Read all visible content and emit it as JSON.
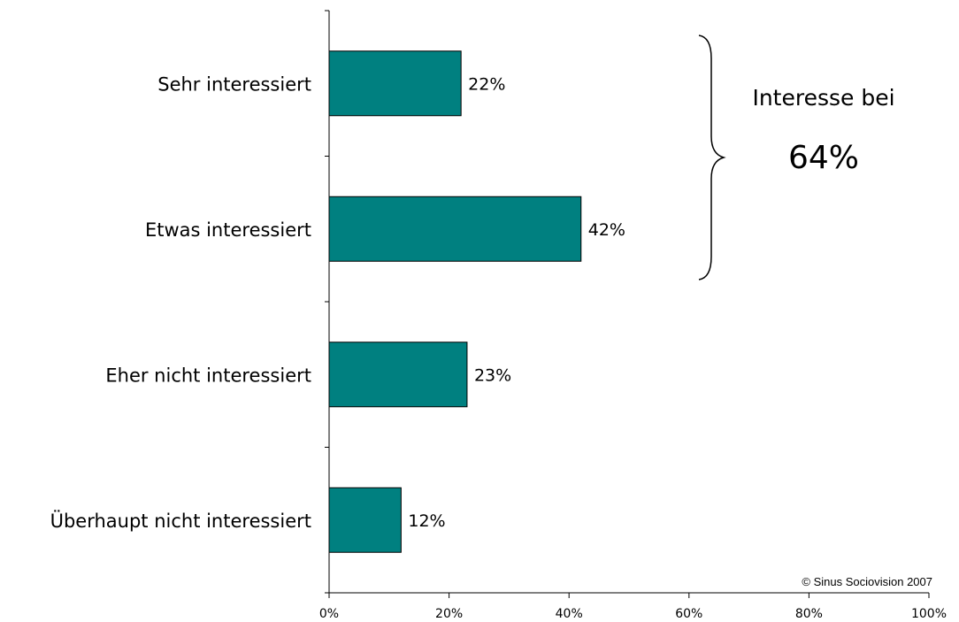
{
  "chart_data": {
    "type": "bar",
    "orientation": "horizontal",
    "categories": [
      "Sehr interessiert",
      "Etwas interessiert",
      "Eher nicht interessiert",
      "Überhaupt nicht interessiert"
    ],
    "values": [
      22,
      42,
      23,
      12
    ],
    "value_labels": [
      "22%",
      "42%",
      "23%",
      "12%"
    ],
    "xlim": [
      0,
      100
    ],
    "x_ticks": [
      "0%",
      "20%",
      "40%",
      "60%",
      "80%",
      "100%"
    ],
    "bar_color": "#008080",
    "grid": false,
    "annotation": {
      "title": "Interesse bei",
      "value": "64%",
      "spans_categories": [
        "Sehr interessiert",
        "Etwas interessiert"
      ]
    },
    "copyright": "© Sinus Sociovision 2007"
  }
}
